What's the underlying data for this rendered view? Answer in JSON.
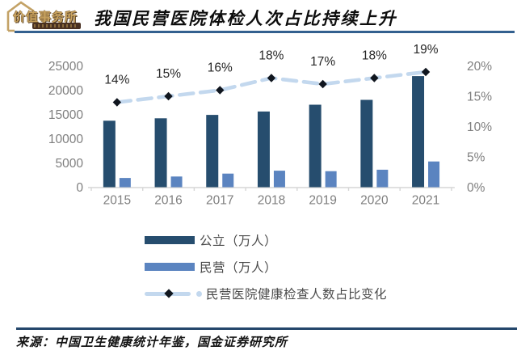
{
  "logo": {
    "name": "价值事务所"
  },
  "header": {
    "title": "我国民营医院体检人次占比持续上升"
  },
  "chart_data": {
    "type": "combo-bar-line",
    "categories": [
      "2015",
      "2016",
      "2017",
      "2018",
      "2019",
      "2020",
      "2021"
    ],
    "series": [
      {
        "name": "公立（万人）",
        "type": "bar",
        "color": "#264d6e",
        "values": [
          13700,
          14200,
          14900,
          15600,
          17000,
          18000,
          22900
        ]
      },
      {
        "name": "民营（万人）",
        "type": "bar",
        "color": "#5b84c0",
        "values": [
          1900,
          2200,
          2800,
          3400,
          3300,
          3600,
          5300
        ]
      },
      {
        "name": "民营医院健康检查人数占比变化",
        "type": "line",
        "axis": "right",
        "color": "#c3d8ee",
        "marker_color": "#10161f",
        "values": [
          14,
          15,
          16,
          18,
          17,
          18,
          19
        ],
        "point_labels": [
          "14%",
          "15%",
          "16%",
          "18%",
          "17%",
          "18%",
          "19%"
        ]
      }
    ],
    "left_axis": {
      "min": 0,
      "max": 25000,
      "tick_labels": [
        "0",
        "5000",
        "10000",
        "15000",
        "20000",
        "25000"
      ]
    },
    "right_axis": {
      "min": 0,
      "max": 20,
      "tick_labels": [
        "0%",
        "5%",
        "10%",
        "15%",
        "20%"
      ]
    },
    "grid": false,
    "legend_position": "bottom"
  },
  "footer": {
    "source": "来源：中国卫生健康统计年鉴，国金证券研究所"
  },
  "colors": {
    "title_rule": "#33608f",
    "bottom_rule": "#24466b",
    "axis_text": "#7f7f7f",
    "axis_line": "#d6d6d6",
    "logo_gold": "#c9a35f",
    "logo_banner": "#4a3122"
  }
}
